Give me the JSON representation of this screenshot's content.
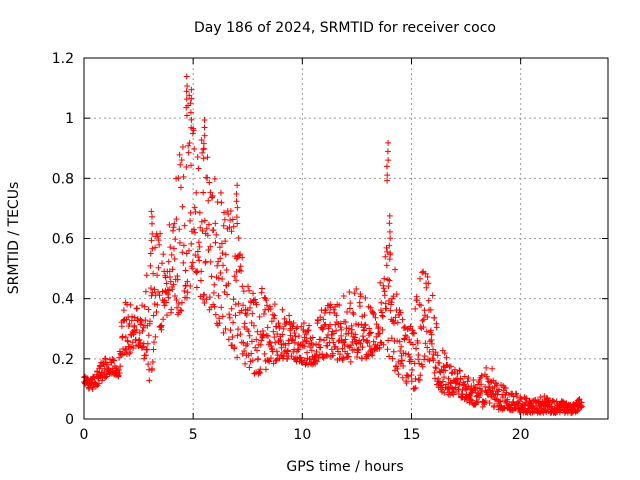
{
  "chart_data": {
    "type": "scatter",
    "title": "Day 186 of 2024, SRMTID for receiver coco",
    "xlabel": "GPS time / hours",
    "ylabel": "SRMTID / TECUs",
    "xlim": [
      0,
      24
    ],
    "ylim": [
      0,
      1.2
    ],
    "xticks": [
      0,
      5,
      10,
      15,
      20
    ],
    "xtick_labels": [
      "0",
      "5",
      "10",
      "15",
      "20"
    ],
    "yticks": [
      0,
      0.2,
      0.4,
      0.6,
      0.8,
      1.0,
      1.2
    ],
    "ytick_labels": [
      "0",
      "0.2",
      "0.4",
      "0.6",
      "0.8",
      "1",
      "1.2"
    ],
    "grid": true,
    "marker": "+",
    "color": "#ff0000",
    "series": [
      {
        "name": "SRMTID",
        "envelope": {
          "x": [
            0.0,
            0.3,
            0.6,
            1.0,
            1.3,
            1.6,
            1.8,
            2.2,
            2.6,
            3.0,
            3.3,
            3.6,
            4.0,
            4.4,
            4.7,
            5.0,
            5.4,
            5.8,
            6.2,
            6.6,
            7.0,
            7.4,
            7.8,
            8.2,
            8.6,
            9.0,
            9.5,
            10.0,
            10.5,
            11.0,
            11.5,
            12.0,
            12.5,
            13.0,
            13.4,
            13.8,
            14.0,
            14.3,
            14.7,
            15.0,
            15.3,
            15.6,
            15.9,
            16.2,
            16.6,
            17.0,
            17.5,
            18.0,
            18.5,
            19.0,
            19.5,
            20.0,
            20.5,
            21.0,
            21.5,
            22.0,
            22.5,
            22.8
          ],
          "low": [
            0.12,
            0.09,
            0.11,
            0.14,
            0.15,
            0.14,
            0.2,
            0.22,
            0.25,
            0.12,
            0.22,
            0.3,
            0.35,
            0.33,
            0.4,
            0.45,
            0.4,
            0.35,
            0.3,
            0.25,
            0.2,
            0.18,
            0.15,
            0.15,
            0.18,
            0.2,
            0.2,
            0.18,
            0.18,
            0.2,
            0.2,
            0.18,
            0.2,
            0.2,
            0.22,
            0.25,
            0.2,
            0.15,
            0.12,
            0.1,
            0.1,
            0.2,
            0.18,
            0.1,
            0.08,
            0.08,
            0.06,
            0.04,
            0.04,
            0.03,
            0.03,
            0.02,
            0.02,
            0.02,
            0.02,
            0.02,
            0.02,
            0.04
          ],
          "high": [
            0.15,
            0.13,
            0.16,
            0.22,
            0.2,
            0.2,
            0.4,
            0.38,
            0.4,
            0.52,
            0.7,
            0.6,
            0.7,
            0.9,
            1.1,
            1.05,
            0.98,
            0.82,
            0.78,
            0.7,
            0.7,
            0.45,
            0.42,
            0.45,
            0.4,
            0.38,
            0.36,
            0.32,
            0.32,
            0.38,
            0.4,
            0.42,
            0.45,
            0.4,
            0.35,
            0.6,
            0.9,
            0.45,
            0.35,
            0.3,
            0.45,
            0.52,
            0.48,
            0.28,
            0.22,
            0.18,
            0.15,
            0.12,
            0.2,
            0.12,
            0.1,
            0.08,
            0.06,
            0.08,
            0.06,
            0.06,
            0.05,
            0.08
          ]
        },
        "spikes": [
          {
            "x": 4.7,
            "y": 1.14
          },
          {
            "x": 4.9,
            "y": 1.1
          },
          {
            "x": 5.5,
            "y": 1.0
          },
          {
            "x": 3.1,
            "y": 0.7
          },
          {
            "x": 7.0,
            "y": 0.78
          },
          {
            "x": 13.9,
            "y": 0.92
          },
          {
            "x": 14.0,
            "y": 0.68
          }
        ]
      }
    ]
  }
}
